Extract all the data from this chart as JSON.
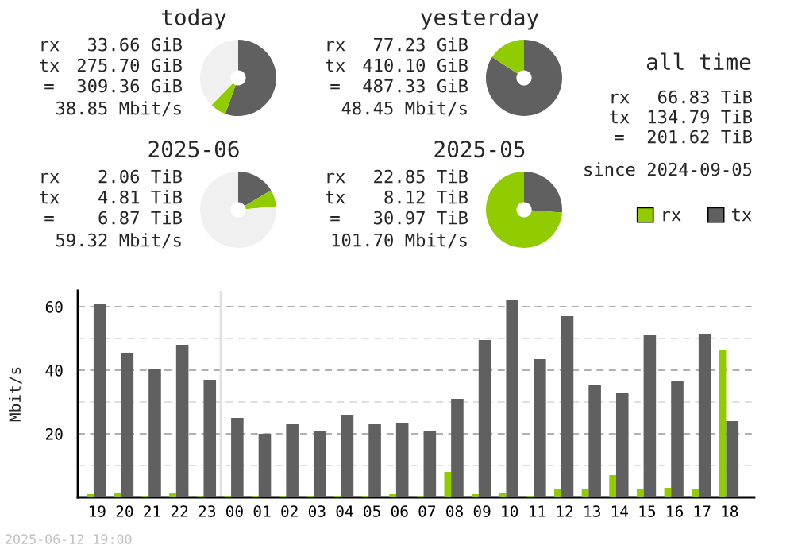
{
  "chart_data": [
    {
      "type": "donut",
      "title": "today",
      "categories": [
        null,
        null,
        null
      ],
      "values": [
        6.8,
        55.5,
        37.7
      ],
      "colors": [
        "#90cc00",
        "#606060",
        "#f0f0f0"
      ],
      "annotations": [
        "rx",
        "33.66 GiB",
        "tx",
        "275.70 GiB",
        "=",
        "309.36 GiB",
        "38.85 Mbit/s"
      ]
    },
    {
      "type": "donut",
      "title": "yesterday",
      "categories": [
        null,
        null
      ],
      "values": [
        15.8,
        84.2
      ],
      "colors": [
        "#90cc00",
        "#606060"
      ],
      "annotations": [
        "rx",
        "77.23 GiB",
        "tx",
        "410.10 GiB",
        "=",
        "487.33 GiB",
        "48.45 Mbit/s"
      ]
    },
    {
      "type": "donut",
      "title": "2025-06",
      "categories": [
        null,
        null,
        null
      ],
      "values": [
        7.1,
        16.5,
        76.4
      ],
      "colors": [
        "#90cc00",
        "#606060",
        "#f0f0f0"
      ],
      "annotations": [
        "rx",
        "2.06 TiB",
        "tx",
        "4.81 TiB",
        "=",
        "6.87 TiB",
        "59.32 Mbit/s"
      ]
    },
    {
      "type": "donut",
      "title": "2025-05",
      "categories": [
        null,
        null
      ],
      "values": [
        73.8,
        26.2
      ],
      "colors": [
        "#90cc00",
        "#606060"
      ],
      "annotations": [
        "rx",
        "22.85 TiB",
        "tx",
        "8.12 TiB",
        "=",
        "30.97 TiB",
        "101.70 Mbit/s"
      ]
    },
    {
      "type": "other",
      "title": "all time",
      "annotations": [
        "rx",
        "66.83 TiB",
        "tx",
        "134.79 TiB",
        "=",
        "201.62 TiB",
        "since 2024-09-05"
      ]
    },
    {
      "type": "bar",
      "ylabel": "Mbit/s",
      "categories": [
        "19",
        "20",
        "21",
        "22",
        "23",
        "00",
        "01",
        "02",
        "03",
        "04",
        "05",
        "06",
        "07",
        "08",
        "09",
        "10",
        "11",
        "12",
        "13",
        "14",
        "15",
        "16",
        "17",
        "18"
      ],
      "series": [
        {
          "name": "rx",
          "color": "#90cc00",
          "values": [
            1,
            1.5,
            0.5,
            1.5,
            0.5,
            0.5,
            0.5,
            0.5,
            0.5,
            0.5,
            0.5,
            1,
            0.5,
            8,
            1,
            1.5,
            0.5,
            2.5,
            2.5,
            7,
            2.5,
            3,
            2.5,
            46.5
          ]
        },
        {
          "name": "tx",
          "color": "#606060",
          "values": [
            61,
            45.5,
            40.5,
            48,
            37,
            25,
            20,
            23,
            21,
            26,
            23,
            23.5,
            21,
            31,
            49.5,
            62,
            43.5,
            57,
            35.5,
            33,
            51,
            36.5,
            51.5,
            24
          ]
        }
      ],
      "ylim": [
        0,
        65
      ],
      "yticks": [
        {
          "value": 10,
          "label": null
        },
        20,
        {
          "value": 30,
          "label": null
        },
        40,
        {
          "value": 50,
          "label": null
        },
        60
      ],
      "grid": "y",
      "legend": "top right",
      "ref_lines": [
        {
          "axis": "x",
          "value": "00",
          "color": "#e0e0e0"
        }
      ],
      "annotations": [
        "2025-06-12 19:00"
      ]
    }
  ]
}
